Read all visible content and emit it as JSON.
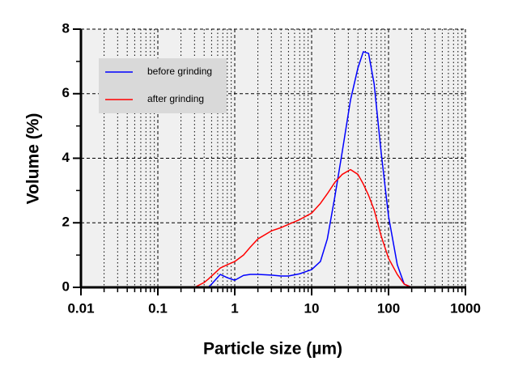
{
  "chart_data": {
    "type": "line",
    "xlabel": "Particle size (µm)",
    "ylabel": "Volume (%)",
    "xscale": "log",
    "grid": true,
    "legend": "upper left",
    "xlim": [
      0.01,
      1000
    ],
    "xticks": [
      0.01,
      0.1,
      1,
      10,
      100,
      1000
    ],
    "ylim": [
      0,
      8
    ],
    "yticks": [
      0,
      2,
      4,
      6,
      8
    ],
    "x": [
      0.1,
      0.3,
      0.4,
      0.45,
      0.5,
      0.65,
      0.8,
      1,
      1.3,
      1.6,
      2,
      3,
      4,
      5,
      7,
      10,
      13,
      16,
      20,
      25,
      32,
      40,
      47,
      55,
      65,
      80,
      100,
      130,
      160,
      200,
      1000
    ],
    "series": [
      {
        "name": "before grinding",
        "color": "#0000ff",
        "values": [
          0,
          0,
          0,
          0,
          0.1,
          0.4,
          0.3,
          0.22,
          0.37,
          0.4,
          0.4,
          0.38,
          0.35,
          0.35,
          0.42,
          0.55,
          0.8,
          1.5,
          2.8,
          4.2,
          5.8,
          6.8,
          7.3,
          7.25,
          6.3,
          4.2,
          2.2,
          0.7,
          0.1,
          0,
          0
        ]
      },
      {
        "name": "after grinding",
        "color": "#ff0000",
        "values": [
          0,
          0,
          0.15,
          0.25,
          0.35,
          0.6,
          0.7,
          0.8,
          1.0,
          1.25,
          1.5,
          1.75,
          1.85,
          1.95,
          2.1,
          2.3,
          2.6,
          2.9,
          3.25,
          3.5,
          3.65,
          3.5,
          3.2,
          2.85,
          2.4,
          1.6,
          0.9,
          0.4,
          0.1,
          0,
          0
        ]
      }
    ]
  }
}
